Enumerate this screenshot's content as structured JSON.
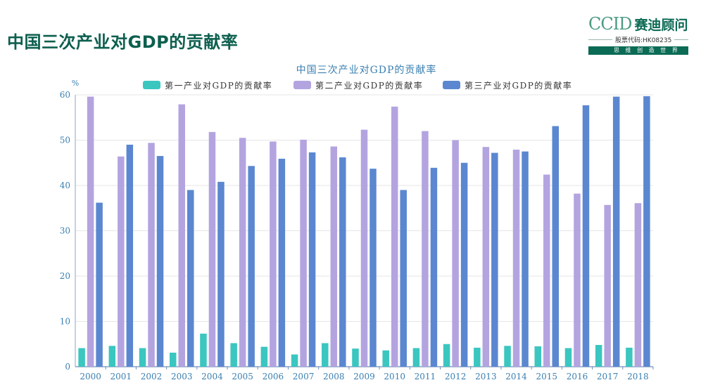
{
  "page": {
    "title": "中国三次产业对GDP的贡献率"
  },
  "logo": {
    "en": "CCID",
    "cn": "赛迪顾问",
    "code": "股票代码:HK08235",
    "tagline": "思 维 创 造 世 界"
  },
  "colors": {
    "primary": "#3bc6c0",
    "secondary": "#b3a4e0",
    "tertiary": "#5b87d0",
    "title_green": "#0c5f4e"
  },
  "chart_data": {
    "type": "bar",
    "title": "中国三次产业对GDP的贡献率",
    "ylabel": "%",
    "ylim": [
      0,
      60
    ],
    "yticks": [
      0,
      10,
      20,
      30,
      40,
      50,
      60
    ],
    "grid": true,
    "legend_position": "top",
    "categories": [
      "2000",
      "2001",
      "2002",
      "2003",
      "2004",
      "2005",
      "2006",
      "2007",
      "2008",
      "2009",
      "2010",
      "2011",
      "2012",
      "2013",
      "2014",
      "2015",
      "2016",
      "2017",
      "2018"
    ],
    "series": [
      {
        "name": "第一产业对GDP的贡献率",
        "color": "#3bc6c0",
        "values": [
          4.1,
          4.6,
          4.1,
          3.1,
          7.3,
          5.2,
          4.4,
          2.7,
          5.2,
          4.0,
          3.6,
          4.1,
          5.0,
          4.2,
          4.6,
          4.5,
          4.1,
          4.8,
          4.2
        ]
      },
      {
        "name": "第二产业对GDP的贡献率",
        "color": "#b3a4e0",
        "values": [
          59.6,
          46.4,
          49.4,
          57.9,
          51.8,
          50.5,
          49.7,
          50.1,
          48.6,
          52.3,
          57.4,
          52.0,
          50.0,
          48.5,
          47.9,
          42.4,
          38.2,
          35.7,
          36.1
        ]
      },
      {
        "name": "第三产业对GDP的贡献率",
        "color": "#5b87d0",
        "values": [
          36.2,
          49.0,
          46.5,
          39.0,
          40.8,
          44.3,
          45.9,
          47.3,
          46.2,
          43.7,
          39.0,
          43.9,
          45.0,
          47.2,
          47.5,
          53.1,
          57.7,
          59.6,
          59.7
        ]
      }
    ]
  }
}
